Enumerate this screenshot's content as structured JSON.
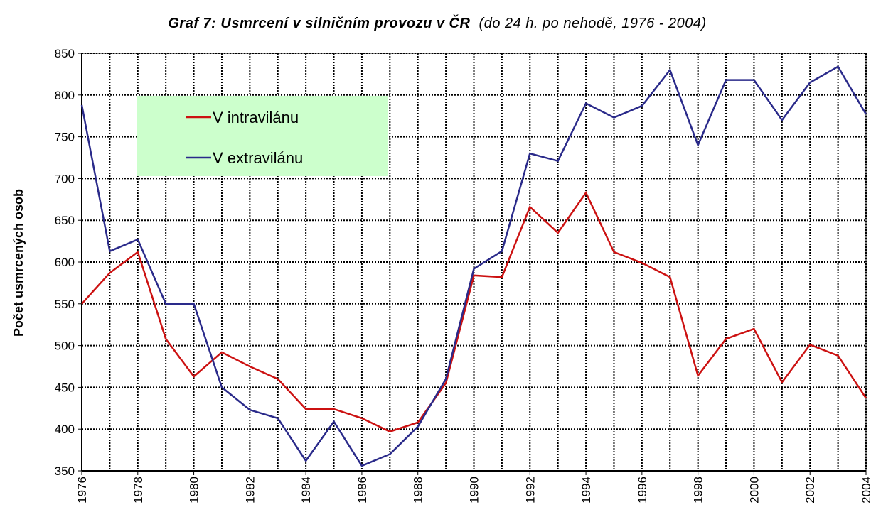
{
  "chart_data": {
    "type": "line",
    "title": "Graf 7: Usmrcení v silničním provozu v ČR",
    "subtitle": "(do 24 h. po nehodě, 1976 - 2004)",
    "y_label": "Počet usmrcených osob",
    "x": [
      1976,
      1977,
      1978,
      1979,
      1980,
      1981,
      1982,
      1983,
      1984,
      1985,
      1986,
      1987,
      1988,
      1989,
      1990,
      1991,
      1992,
      1993,
      1994,
      1995,
      1996,
      1997,
      1998,
      1999,
      2000,
      2001,
      2002,
      2003,
      2004
    ],
    "series": [
      {
        "name": "V intravilánu",
        "color": "#cc1111",
        "values": [
          550,
          587,
          612,
          508,
          463,
          492,
          475,
          460,
          424,
          424,
          413,
          397,
          408,
          455,
          584,
          582,
          666,
          635,
          683,
          612,
          599,
          582,
          464,
          508,
          520,
          456,
          501,
          488,
          437
        ]
      },
      {
        "name": "V extravilánu",
        "color": "#2a2a8a",
        "values": [
          788,
          613,
          627,
          550,
          550,
          450,
          423,
          413,
          362,
          409,
          356,
          370,
          403,
          460,
          592,
          613,
          730,
          721,
          790,
          773,
          787,
          830,
          740,
          818,
          818,
          770,
          815,
          834,
          777
        ]
      }
    ],
    "xlim": [
      1976,
      2004
    ],
    "xticks": [
      1976,
      1978,
      1980,
      1982,
      1984,
      1986,
      1988,
      1990,
      1992,
      1994,
      1996,
      1998,
      2000,
      2002,
      2004
    ],
    "ylim": [
      350,
      850
    ],
    "yticks": [
      350,
      400,
      450,
      500,
      550,
      600,
      650,
      700,
      750,
      800,
      850
    ],
    "grid": true,
    "legend": "upper-left"
  }
}
